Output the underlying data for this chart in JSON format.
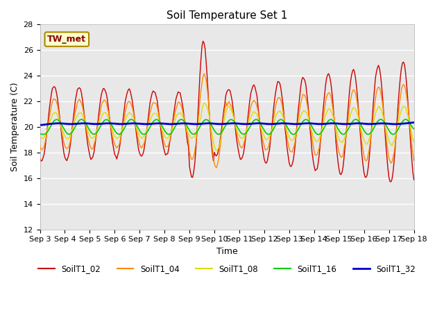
{
  "title": "Soil Temperature Set 1",
  "xlabel": "Time",
  "ylabel": "Soil Temperature (C)",
  "ylim": [
    12,
    28
  ],
  "yticks": [
    12,
    14,
    16,
    18,
    20,
    22,
    24,
    26,
    28
  ],
  "colors": {
    "SoilT1_02": "#cc0000",
    "SoilT1_04": "#ff8800",
    "SoilT1_08": "#dddd00",
    "SoilT1_16": "#00cc00",
    "SoilT1_32": "#0000cc"
  },
  "annotation_text": "TW_met",
  "annotation_color": "#880000",
  "annotation_bg": "#ffffcc",
  "annotation_edge": "#aa8800",
  "background_color": "#e8e8e8",
  "title_fontsize": 11,
  "tick_fontsize": 8,
  "label_fontsize": 9
}
